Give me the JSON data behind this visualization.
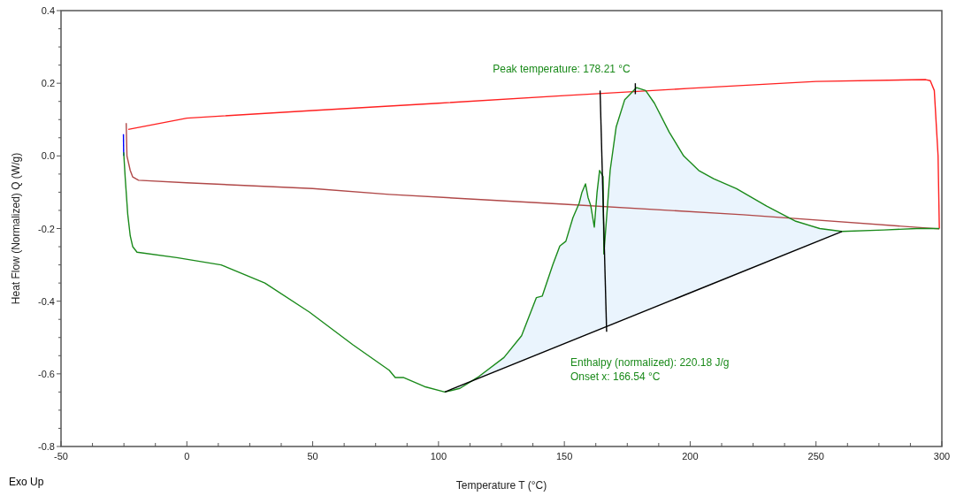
{
  "chart_data": {
    "type": "line",
    "xlabel": "Temperature T (°C)",
    "ylabel": "Heat Flow (Normalized) Q (W/g)",
    "annotations": [
      "Peak temperature: 178.21 °C",
      "Enthalpy (normalized): 220.18 J/g",
      "Onset x: 166.54 °C",
      "Exo Up"
    ],
    "xlim": [
      -50,
      300
    ],
    "ylim": [
      -0.8,
      0.4
    ],
    "xticks": [
      {
        "value": -50,
        "label": "-50"
      },
      {
        "value": -37.5,
        "label": null
      },
      {
        "value": -25,
        "label": null
      },
      {
        "value": -12.5,
        "label": null
      },
      0,
      {
        "value": 12.5,
        "label": null
      },
      {
        "value": 25,
        "label": null
      },
      {
        "value": 37.5,
        "label": null
      },
      50,
      {
        "value": 62.5,
        "label": null
      },
      {
        "value": 75,
        "label": null
      },
      {
        "value": 87.5,
        "label": null
      },
      100,
      {
        "value": 112.5,
        "label": null
      },
      {
        "value": 125,
        "label": null
      },
      {
        "value": 137.5,
        "label": null
      },
      150,
      {
        "value": 162.5,
        "label": null
      },
      {
        "value": 175,
        "label": null
      },
      {
        "value": 187.5,
        "label": null
      },
      200,
      {
        "value": 212.5,
        "label": null
      },
      {
        "value": 225,
        "label": null
      },
      {
        "value": 237.5,
        "label": null
      },
      250,
      {
        "value": 262.5,
        "label": null
      },
      {
        "value": 275,
        "label": null
      },
      {
        "value": 287.5,
        "label": null
      },
      300
    ],
    "yticks": [
      {
        "value": -0.8,
        "label": "-0.8"
      },
      {
        "value": -0.75,
        "label": null
      },
      {
        "value": -0.7,
        "label": null
      },
      {
        "value": -0.65,
        "label": null
      },
      {
        "value": -0.6,
        "label": "-0.6"
      },
      {
        "value": -0.55,
        "label": null
      },
      {
        "value": -0.5,
        "label": null
      },
      {
        "value": -0.45,
        "label": null
      },
      {
        "value": -0.4,
        "label": "-0.4"
      },
      {
        "value": -0.35,
        "label": null
      },
      {
        "value": -0.3,
        "label": null
      },
      {
        "value": -0.25,
        "label": null
      },
      {
        "value": -0.2,
        "label": "-0.2"
      },
      {
        "value": -0.15,
        "label": null
      },
      {
        "value": -0.1,
        "label": null
      },
      {
        "value": -0.05,
        "label": null
      },
      {
        "value": 0,
        "label": "0.0"
      },
      {
        "value": 0.05,
        "label": null
      },
      {
        "value": 0.1,
        "label": null
      },
      {
        "value": 0.15,
        "label": null
      },
      {
        "value": 0.2,
        "label": "0.2"
      },
      {
        "value": 0.25,
        "label": null
      },
      {
        "value": 0.3,
        "label": null
      },
      {
        "value": 0.35,
        "label": null
      },
      {
        "value": 0.4,
        "label": "0.4"
      }
    ],
    "grid": false,
    "series": [
      {
        "type": "line",
        "color": "#ff2020",
        "x": [
          299,
          298.5,
          297,
          295.4,
          293.6,
          250,
          200,
          150,
          100,
          50,
          0,
          -23.3
        ],
        "values": [
          -0.2,
          0.0,
          0.18,
          0.207,
          0.21,
          0.205,
          0.186,
          0.166,
          0.145,
          0.125,
          0.104,
          0.073
        ]
      },
      {
        "type": "line",
        "color": "#b04848",
        "x": [
          -24.1,
          -23.8,
          -22.5,
          -21.5,
          -19.2,
          0,
          50,
          80.4,
          150,
          221,
          299
        ],
        "values": [
          0.09,
          0.0,
          -0.04,
          -0.058,
          -0.067,
          -0.074,
          -0.09,
          -0.106,
          -0.133,
          -0.162,
          -0.201
        ]
      },
      {
        "type": "line",
        "color": "#0000ff",
        "x": [
          -25.2,
          -25.1
        ],
        "values": [
          0.06,
          0.0
        ]
      },
      {
        "type": "line",
        "color": "#1a8a1a",
        "x": [
          -25.1,
          -24.5,
          -23.5,
          -22.5,
          -21.5,
          -19.8,
          -4,
          13.6,
          31,
          48.7,
          66,
          80.4,
          82.8,
          86,
          94.4,
          102.5,
          108.5,
          115.5,
          126,
          133,
          138.9,
          141.2,
          145.4,
          148.2,
          150.6,
          153.4,
          155.9,
          157,
          158.4,
          159.4,
          160.5,
          161.9,
          163,
          164,
          165.4,
          165.7,
          168.2,
          170.6,
          174,
          178.7,
          182.3,
          185.8,
          191.7,
          197.4,
          203.4,
          209.3,
          218.4,
          230.4,
          242,
          251.5,
          260.3,
          277,
          290,
          299
        ],
        "values": [
          0.01,
          -0.06,
          -0.16,
          -0.22,
          -0.25,
          -0.265,
          -0.28,
          -0.3,
          -0.35,
          -0.43,
          -0.52,
          -0.59,
          -0.61,
          -0.61,
          -0.635,
          -0.65,
          -0.64,
          -0.61,
          -0.555,
          -0.495,
          -0.39,
          -0.386,
          -0.3,
          -0.248,
          -0.235,
          -0.17,
          -0.13,
          -0.1,
          -0.077,
          -0.114,
          -0.137,
          -0.196,
          -0.1,
          -0.04,
          -0.057,
          -0.27,
          -0.04,
          0.08,
          0.155,
          0.188,
          0.18,
          0.145,
          0.065,
          0,
          -0.04,
          -0.063,
          -0.09,
          -0.138,
          -0.18,
          -0.2,
          -0.208,
          -0.204,
          -0.2,
          -0.2
        ]
      },
      {
        "type": "line",
        "color": "#000000",
        "x": [
          102.5,
          260.3
        ],
        "values": [
          -0.65,
          -0.208
        ]
      },
      {
        "type": "line",
        "color": "#000000",
        "x": [
          164.2,
          166.8
        ],
        "values": [
          0.18,
          -0.484
        ]
      },
      {
        "type": "line",
        "color": "#000000",
        "x": [
          178.2,
          178.2
        ],
        "values": [
          0.2,
          0.17
        ]
      }
    ]
  }
}
